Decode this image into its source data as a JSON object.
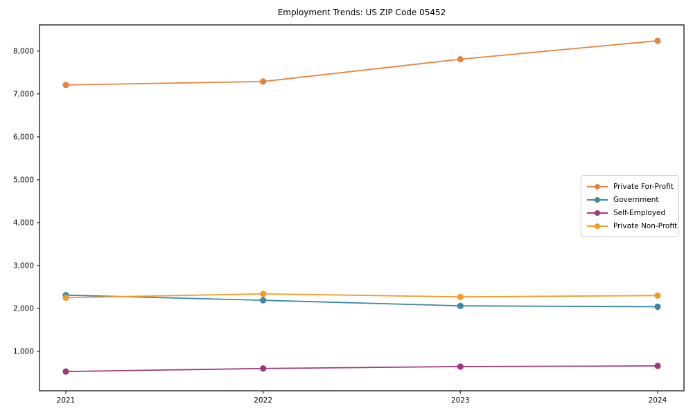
{
  "title": "Employment Trends: US ZIP Code 05452",
  "chart_data": {
    "type": "line",
    "title": "Employment Trends: US ZIP Code 05452",
    "xlabel": "",
    "ylabel": "",
    "categories": [
      "2021",
      "2022",
      "2023",
      "2024"
    ],
    "series": [
      {
        "name": "Private For-Profit",
        "color": "#e8823e",
        "values": [
          7210,
          7290,
          7810,
          8240
        ]
      },
      {
        "name": "Government",
        "color": "#3b87a5",
        "values": [
          2310,
          2190,
          2060,
          2040
        ]
      },
      {
        "name": "Self-Employed",
        "color": "#a23778",
        "values": [
          530,
          600,
          645,
          660
        ]
      },
      {
        "name": "Private Non-Profit",
        "color": "#f09d24",
        "values": [
          2250,
          2340,
          2270,
          2300
        ]
      }
    ],
    "yticks": [
      1000,
      2000,
      3000,
      4000,
      5000,
      6000,
      7000,
      8000
    ],
    "ytick_labels": [
      "1,000",
      "2,000",
      "3,000",
      "4,000",
      "5,000",
      "6,000",
      "7,000",
      "8,000"
    ],
    "ylim": [
      80,
      8610
    ],
    "grid": false,
    "legend_position": "center-right",
    "marker": "circle",
    "axis_color": "#000000",
    "tick_label_color": "#000000"
  }
}
